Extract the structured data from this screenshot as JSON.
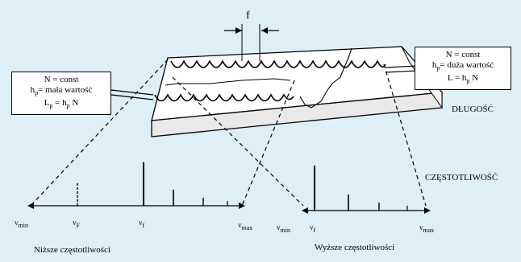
{
  "diagram": {
    "period_symbol": "f",
    "left_box": {
      "line1": "N = const",
      "line2_pre": "h",
      "line2_sub": "p",
      "line2_post": "= mała wartość",
      "line3_pre": "L",
      "line3_sub": "p",
      "line3_mid": " = h",
      "line3_sub2": "p",
      "line3_post": " N"
    },
    "right_box": {
      "line1": "N = const",
      "line2_pre": "h",
      "line2_sub": "p",
      "line2_post": "= duża wartość",
      "line3_pre": "L = h",
      "line3_sub": "p",
      "line3_post": " N"
    },
    "length_label": "DŁUGOŚĆ",
    "frequency_label": "CZĘSTOTLIWOŚĆ",
    "left_axis": {
      "vmin_main": "v",
      "vmin_sub": "min",
      "vp_main": "v",
      "vp_sub": "F",
      "vf_main": "v",
      "vf_sub": "f",
      "vmax_main": "v",
      "vmax_sub": "max"
    },
    "right_axis": {
      "vmin_main": "v",
      "vmin_sub": "min",
      "vf_main": "v",
      "vf_sub": "f",
      "vmax_main": "v",
      "vmax_sub": "max"
    },
    "low_caption": "Niższe częstotliwości",
    "high_caption": "Wyższe częstotliwości"
  },
  "colors": {
    "background": "#dfeff8",
    "block_top": "#ffffff",
    "block_side": "#e9e9e9",
    "line": "#000000"
  }
}
